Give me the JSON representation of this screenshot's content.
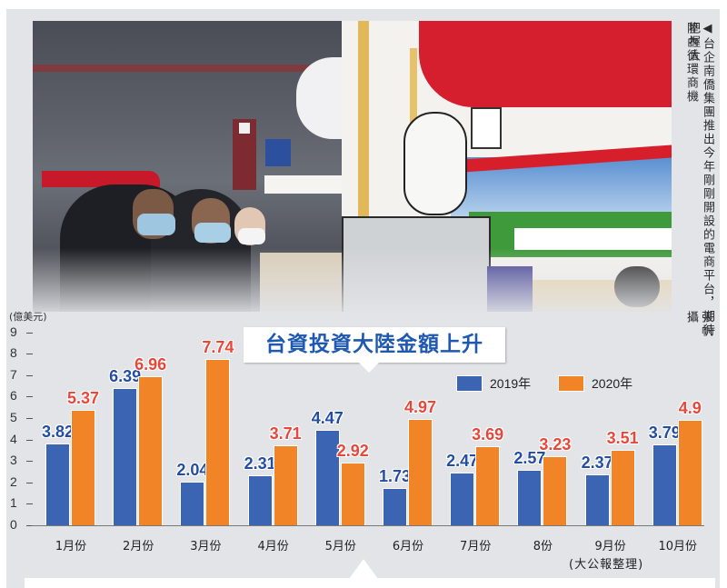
{
  "caption": {
    "line1": "◀台企南僑集團推出今年剛剛開設的電商平台，期待把握大",
    "line2": "陸內循環商機",
    "credit": "張帆攝"
  },
  "chart": {
    "title": "台資投資大陸金額上升",
    "unit": "(億美元)",
    "source": "(大公報整理)",
    "legend": [
      {
        "label": "2019年",
        "color": "#3b64b2"
      },
      {
        "label": "2020年",
        "color": "#f18426"
      }
    ],
    "yticks": [
      "0",
      "1",
      "2",
      "3",
      "4",
      "5",
      "6",
      "7",
      "8",
      "9"
    ]
  },
  "chart_data": {
    "type": "bar",
    "title": "台資投資大陸金額上升",
    "xlabel": "",
    "ylabel": "億美元",
    "ylim": [
      0,
      9
    ],
    "grid": false,
    "legend_position": "top-right",
    "categories": [
      "1月份",
      "2月份",
      "3月份",
      "4月份",
      "5月份",
      "6月份",
      "7月份",
      "8份",
      "9月份",
      "10月份"
    ],
    "series": [
      {
        "name": "2019年",
        "color": "#3b64b2",
        "values": [
          3.82,
          6.39,
          2.04,
          2.31,
          4.47,
          1.73,
          2.47,
          2.57,
          2.37,
          3.79
        ]
      },
      {
        "name": "2020年",
        "color": "#f18426",
        "values": [
          5.37,
          6.96,
          7.74,
          3.71,
          2.92,
          4.97,
          3.69,
          3.23,
          3.51,
          4.9
        ]
      }
    ],
    "value_labels_19": [
      "3.82",
      "6.39",
      "2.04",
      "2.31",
      "4.47",
      "1.73",
      "2.47",
      "2.57",
      "2.37",
      "3.79"
    ],
    "value_labels_20": [
      "5.37",
      "6.96",
      "7.74",
      "3.71",
      "2.92",
      "4.97",
      "3.69",
      "3.23",
      "3.51",
      "4.9"
    ],
    "source": "(大公報整理)"
  }
}
